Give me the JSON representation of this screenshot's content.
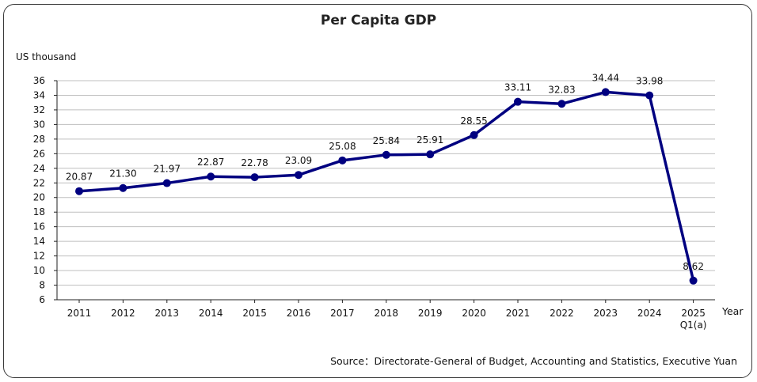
{
  "chart_data": {
    "type": "line",
    "title": "Per Capita GDP",
    "ylabel": "US thousand",
    "xlabel": "Year",
    "categories": [
      "2011",
      "2012",
      "2013",
      "2014",
      "2015",
      "2016",
      "2017",
      "2018",
      "2019",
      "2020",
      "2021",
      "2022",
      "2023",
      "2024",
      "2025"
    ],
    "category_sublabels": [
      "",
      "",
      "",
      "",
      "",
      "",
      "",
      "",
      "",
      "",
      "",
      "",
      "",
      "",
      "Q1(a)"
    ],
    "values": [
      20.87,
      21.3,
      21.97,
      22.87,
      22.78,
      23.09,
      25.08,
      25.84,
      25.91,
      28.55,
      33.11,
      32.83,
      34.44,
      33.98,
      8.62
    ],
    "value_labels": [
      "20.87",
      "21.30",
      "21.97",
      "22.87",
      "22.78",
      "23.09",
      "25.08",
      "25.84",
      "25.91",
      "28.55",
      "33.11",
      "32.83",
      "34.44",
      "33.98",
      "8.62"
    ],
    "ylim": [
      6,
      36
    ],
    "yticks": [
      6,
      8,
      10,
      12,
      14,
      16,
      18,
      20,
      22,
      24,
      26,
      28,
      30,
      32,
      34,
      36
    ],
    "grid": true,
    "legend": "none",
    "line_color": "#000080",
    "grid_color": "#bfbfbf"
  },
  "source": "Source：Directorate-General of Budget, Accounting and Statistics, Executive Yuan"
}
